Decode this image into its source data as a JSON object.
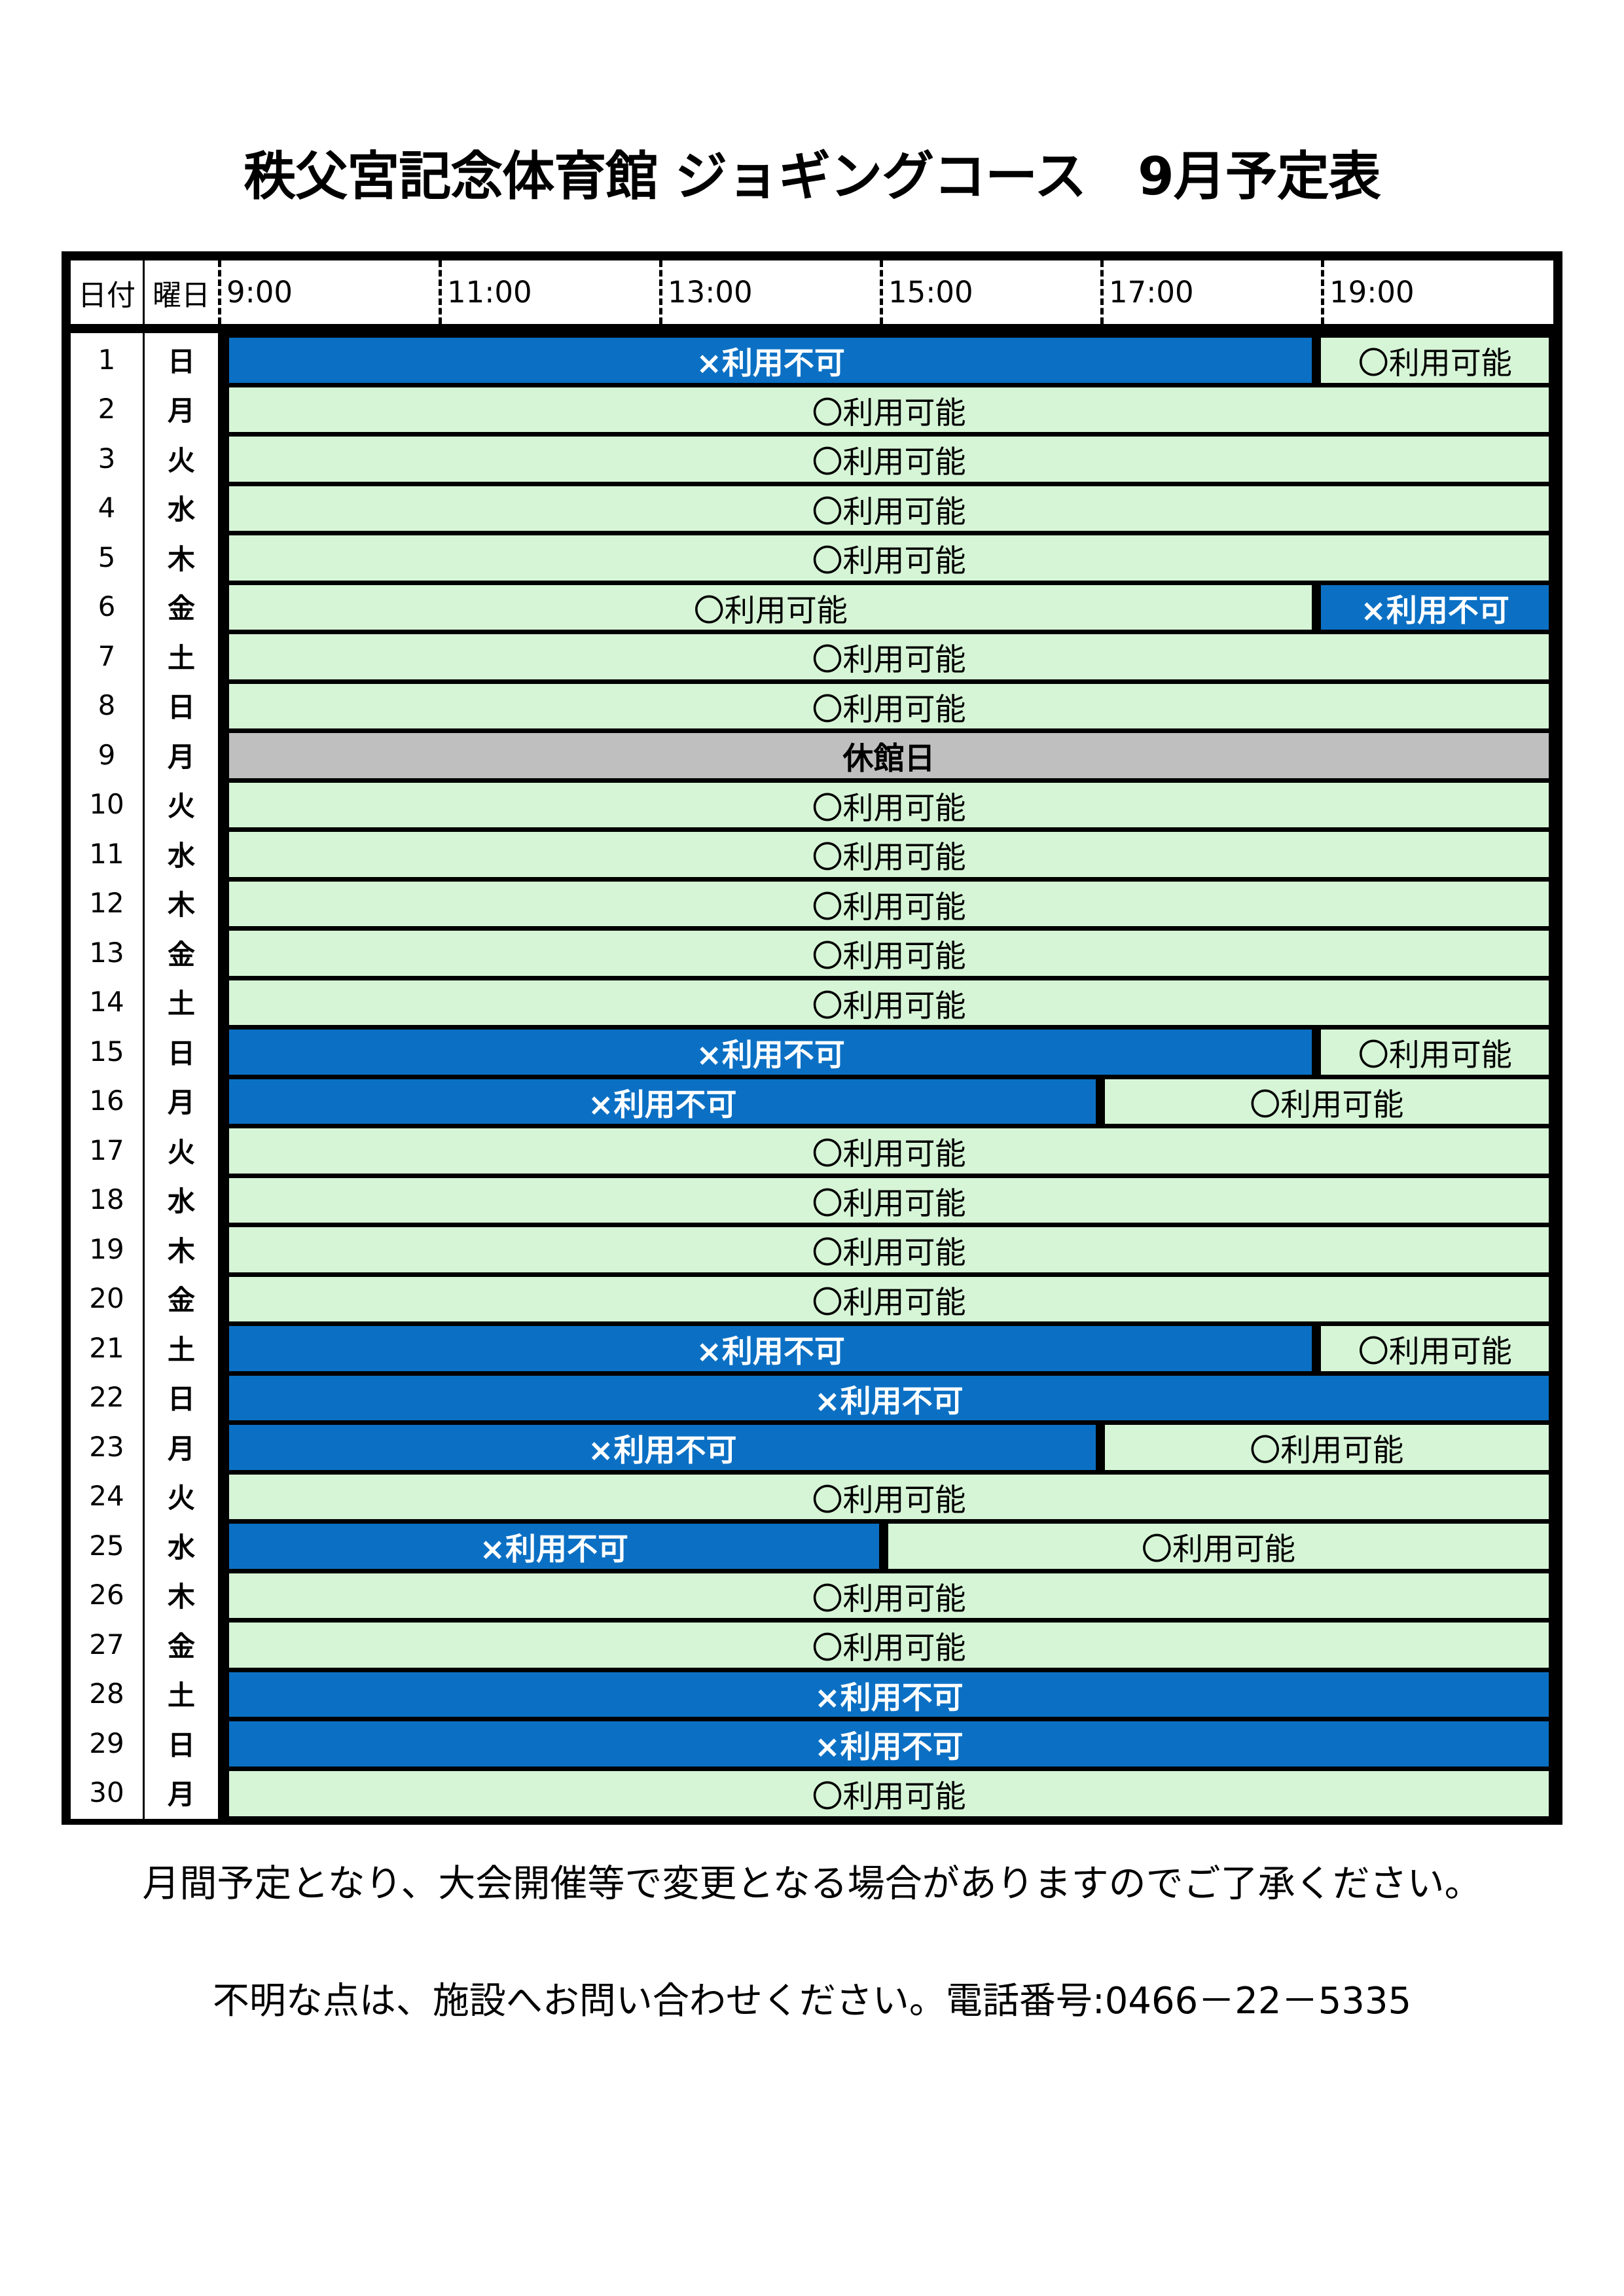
{
  "title": "秩父宮記念体育館 ジョギングコース　9月予定表",
  "table": {
    "headers": {
      "date": "日付",
      "day": "曜日",
      "times": [
        "9:00",
        "11:00",
        "13:00",
        "15:00",
        "17:00",
        "19:00"
      ]
    },
    "legend": {
      "available": "〇利用可能",
      "unavailable": "×利用不可",
      "closed": "休館日"
    },
    "rows": [
      {
        "date": "1",
        "day": "日",
        "segments": [
          {
            "status": "unavailable",
            "cols": 5
          },
          {
            "status": "available",
            "cols": 1
          }
        ]
      },
      {
        "date": "2",
        "day": "月",
        "segments": [
          {
            "status": "available",
            "cols": 6
          }
        ]
      },
      {
        "date": "3",
        "day": "火",
        "segments": [
          {
            "status": "available",
            "cols": 6
          }
        ]
      },
      {
        "date": "4",
        "day": "水",
        "segments": [
          {
            "status": "available",
            "cols": 6
          }
        ]
      },
      {
        "date": "5",
        "day": "木",
        "segments": [
          {
            "status": "available",
            "cols": 6
          }
        ]
      },
      {
        "date": "6",
        "day": "金",
        "segments": [
          {
            "status": "available",
            "cols": 5
          },
          {
            "status": "unavailable",
            "cols": 1
          }
        ]
      },
      {
        "date": "7",
        "day": "土",
        "segments": [
          {
            "status": "available",
            "cols": 6
          }
        ]
      },
      {
        "date": "8",
        "day": "日",
        "segments": [
          {
            "status": "available",
            "cols": 6
          }
        ]
      },
      {
        "date": "9",
        "day": "月",
        "segments": [
          {
            "status": "closed",
            "cols": 6
          }
        ]
      },
      {
        "date": "10",
        "day": "火",
        "segments": [
          {
            "status": "available",
            "cols": 6
          }
        ]
      },
      {
        "date": "11",
        "day": "水",
        "segments": [
          {
            "status": "available",
            "cols": 6
          }
        ]
      },
      {
        "date": "12",
        "day": "木",
        "segments": [
          {
            "status": "available",
            "cols": 6
          }
        ]
      },
      {
        "date": "13",
        "day": "金",
        "segments": [
          {
            "status": "available",
            "cols": 6
          }
        ]
      },
      {
        "date": "14",
        "day": "土",
        "segments": [
          {
            "status": "available",
            "cols": 6
          }
        ]
      },
      {
        "date": "15",
        "day": "日",
        "segments": [
          {
            "status": "unavailable",
            "cols": 5
          },
          {
            "status": "available",
            "cols": 1
          }
        ]
      },
      {
        "date": "16",
        "day": "月",
        "segments": [
          {
            "status": "unavailable",
            "cols": 4
          },
          {
            "status": "available",
            "cols": 2
          }
        ]
      },
      {
        "date": "17",
        "day": "火",
        "segments": [
          {
            "status": "available",
            "cols": 6
          }
        ]
      },
      {
        "date": "18",
        "day": "水",
        "segments": [
          {
            "status": "available",
            "cols": 6
          }
        ]
      },
      {
        "date": "19",
        "day": "木",
        "segments": [
          {
            "status": "available",
            "cols": 6
          }
        ]
      },
      {
        "date": "20",
        "day": "金",
        "segments": [
          {
            "status": "available",
            "cols": 6
          }
        ]
      },
      {
        "date": "21",
        "day": "土",
        "segments": [
          {
            "status": "unavailable",
            "cols": 5
          },
          {
            "status": "available",
            "cols": 1
          }
        ]
      },
      {
        "date": "22",
        "day": "日",
        "segments": [
          {
            "status": "unavailable",
            "cols": 6
          }
        ]
      },
      {
        "date": "23",
        "day": "月",
        "segments": [
          {
            "status": "unavailable",
            "cols": 4
          },
          {
            "status": "available",
            "cols": 2
          }
        ]
      },
      {
        "date": "24",
        "day": "火",
        "segments": [
          {
            "status": "available",
            "cols": 6
          }
        ]
      },
      {
        "date": "25",
        "day": "水",
        "segments": [
          {
            "status": "unavailable",
            "cols": 3
          },
          {
            "status": "available",
            "cols": 3
          }
        ]
      },
      {
        "date": "26",
        "day": "木",
        "segments": [
          {
            "status": "available",
            "cols": 6
          }
        ]
      },
      {
        "date": "27",
        "day": "金",
        "segments": [
          {
            "status": "available",
            "cols": 6
          }
        ]
      },
      {
        "date": "28",
        "day": "土",
        "segments": [
          {
            "status": "unavailable",
            "cols": 6
          }
        ]
      },
      {
        "date": "29",
        "day": "日",
        "segments": [
          {
            "status": "unavailable",
            "cols": 6
          }
        ]
      },
      {
        "date": "30",
        "day": "月",
        "segments": [
          {
            "status": "available",
            "cols": 6
          }
        ]
      }
    ]
  },
  "notes": [
    "月間予定となり、大会開催等で変更となる場合がありますのでご了承ください。",
    "不明な点は、施設へお問い合わせください。電話番号:0466－22－5335"
  ],
  "colors": {
    "available_bg": "#d6f5d6",
    "unavailable_bg": "#0b70c4",
    "closed_bg": "#bfbfbf",
    "border": "#000000"
  }
}
